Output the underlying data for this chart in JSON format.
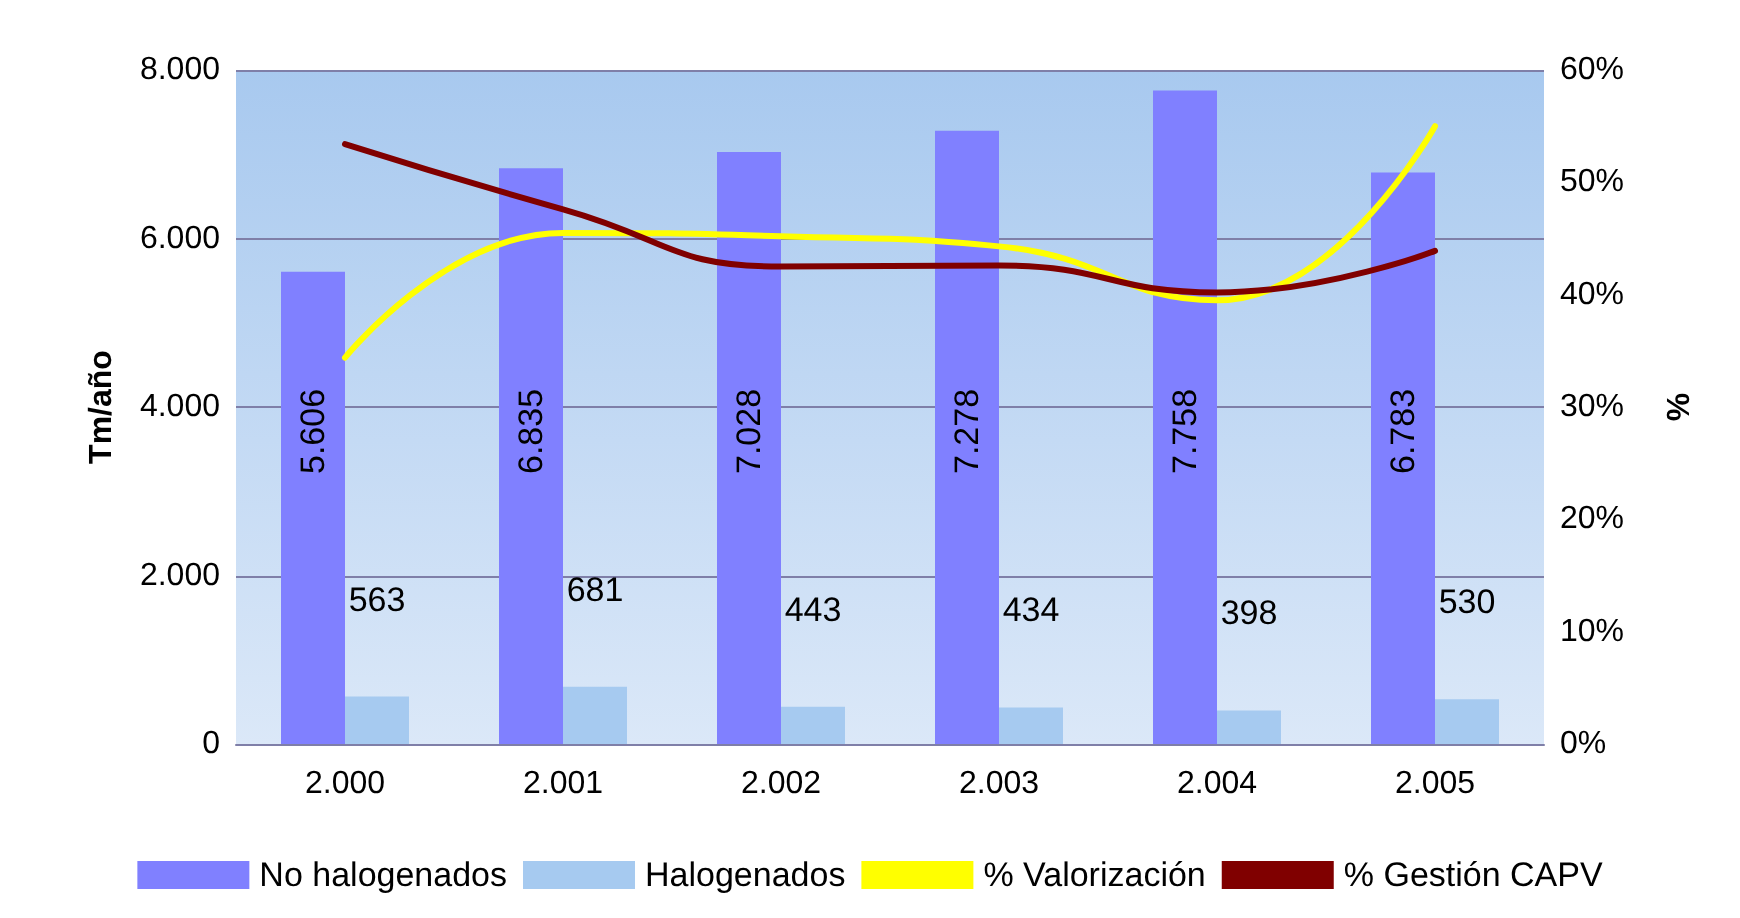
{
  "chart_data": {
    "type": "bar",
    "ylabel": "Tm/año",
    "y2label": "%",
    "categories": [
      "2.000",
      "2.001",
      "2.002",
      "2.003",
      "2.004",
      "2.005"
    ],
    "series": [
      {
        "name": "No halogenados",
        "color": "#8080ff",
        "values": [
          5606,
          6835,
          7028,
          7278,
          7758,
          6783
        ],
        "value_labels": [
          "5.606",
          "6.835",
          "7.028",
          "7.278",
          "7.758",
          "6.783"
        ]
      },
      {
        "name": "Halogenados",
        "color": "#a6caf0",
        "values": [
          563,
          681,
          443,
          434,
          398,
          530
        ],
        "value_labels": [
          "563",
          "681",
          "443",
          "434",
          "398",
          "530"
        ]
      },
      {
        "name": "% Valorización",
        "type": "line",
        "axis": "y2",
        "color": "#ffff00",
        "values": [
          34.4,
          45.5,
          45.2,
          44.3,
          39.5,
          55.0
        ]
      },
      {
        "name": "% Gestión CAPV",
        "type": "line",
        "axis": "y2",
        "color": "#800000",
        "values": [
          53.4,
          47.6,
          42.5,
          42.6,
          40.2,
          43.9
        ]
      }
    ],
    "ylim": [
      0,
      8000
    ],
    "yticks": [
      {
        "value": 0,
        "label": "0"
      },
      {
        "value": 2000,
        "label": "2.000"
      },
      {
        "value": 4000,
        "label": "4.000"
      },
      {
        "value": 6000,
        "label": "6.000"
      },
      {
        "value": 8000,
        "label": "8.000"
      }
    ],
    "y2lim": [
      0,
      60
    ],
    "y2ticks": [
      {
        "value": 0,
        "label": "0%"
      },
      {
        "value": 10,
        "label": "10%"
      },
      {
        "value": 20,
        "label": "20%"
      },
      {
        "value": 30,
        "label": "30%"
      },
      {
        "value": 40,
        "label": "40%"
      },
      {
        "value": 50,
        "label": "50%"
      },
      {
        "value": 60,
        "label": "60%"
      }
    ],
    "grid": "y",
    "legend": "bottom",
    "marker": "none",
    "line_style": "solid"
  }
}
